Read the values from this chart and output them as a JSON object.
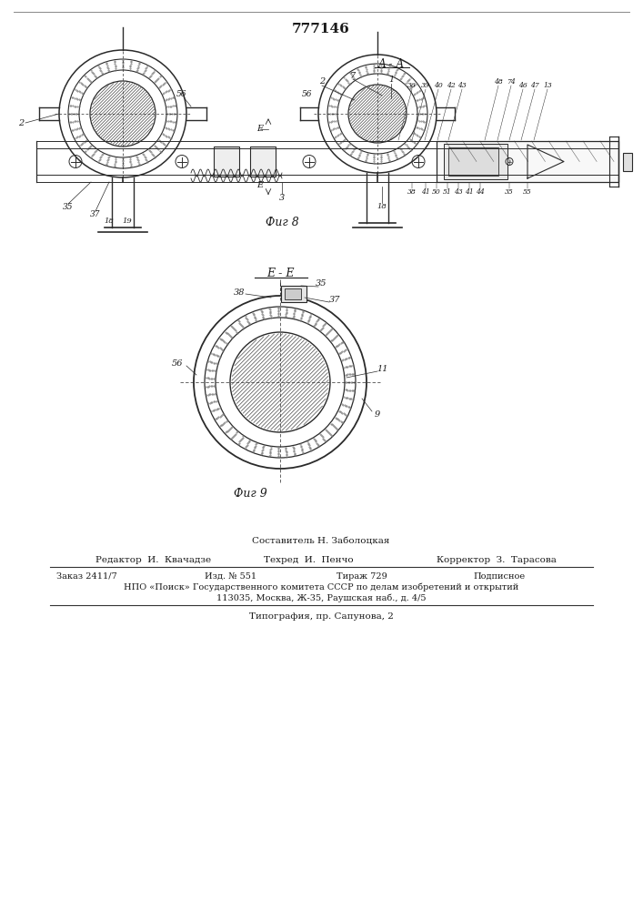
{
  "patent_number": "777146",
  "fig8_label": "А - А",
  "fig9_label": "Е - Е",
  "fig8_caption": "Фиг 8",
  "fig9_caption": "Фиг 9",
  "footer_composer": "Составитель Н. Заболоцкая",
  "footer_editor": "Редактор  И.  Квачадзе",
  "footer_techred": "Техред  И.  Пенчо",
  "footer_corrector": "Корректор  З.  Тарасова",
  "footer_order": "Заказ 2411/7",
  "footer_izd": "Изд. № 551",
  "footer_tirazh": "Тираж 729",
  "footer_podpisnoe": "Подписное",
  "footer_npo": "НПО «Поиск» Государственного комитета СССР по делам изобретений и открытий",
  "footer_address": "113035, Москва, Ж-35, Раушская наб., д. 4/5",
  "footer_tipografia": "Типография, пр. Сапунова, 2",
  "bg_color": "#ffffff",
  "line_color": "#2a2a2a",
  "text_color": "#1a1a1a"
}
